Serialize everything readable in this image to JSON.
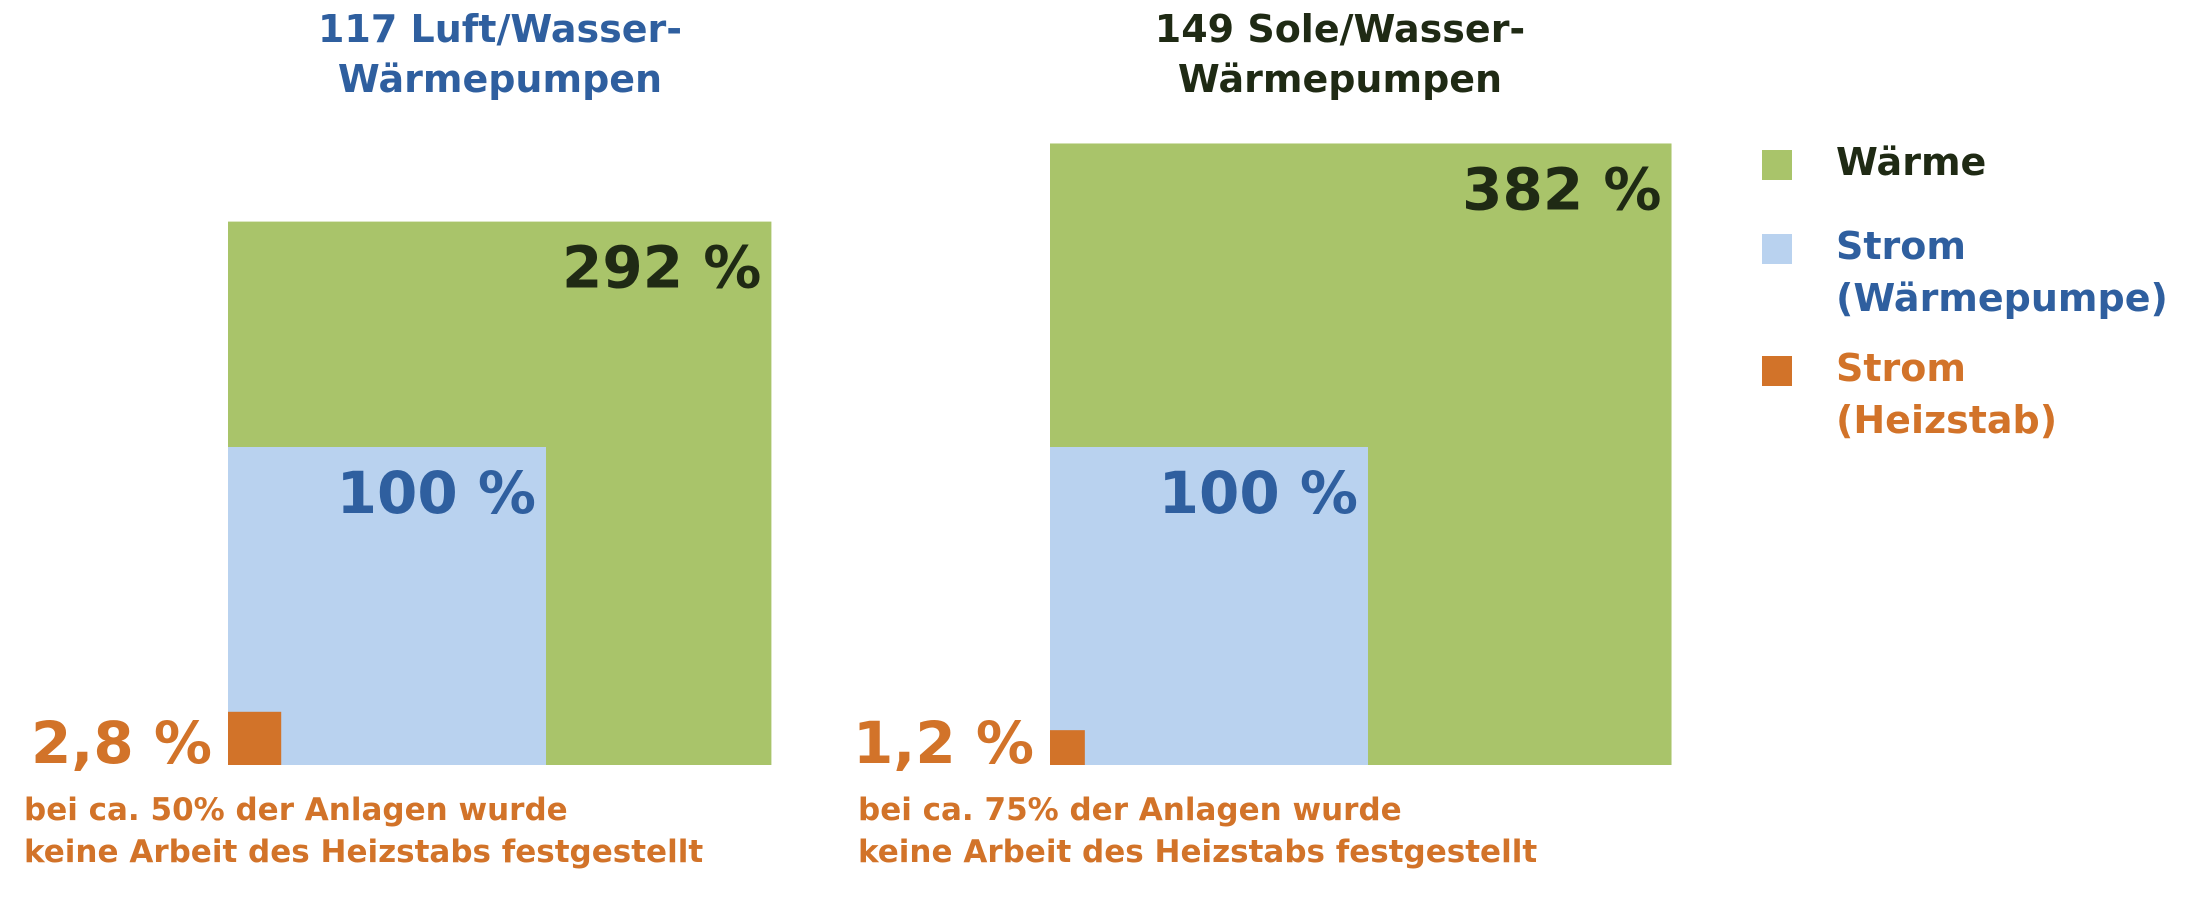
{
  "colors": {
    "heat": "#a9c46a",
    "power_hp": "#b9d2ef",
    "power_rod": "#d27329",
    "blue_text": "#2f5f9f",
    "dark_text": "#1f2a14",
    "orange_text": "#d27329"
  },
  "chart_data": [
    {
      "type": "area-proportional squares",
      "title_line1": "117 Luft/Wasser-",
      "title_line2": "Wärmepumpen",
      "series": [
        {
          "name": "Wärme",
          "value": 292,
          "label": "292 %"
        },
        {
          "name": "Strom (Wärmepumpe)",
          "value": 100,
          "label": "100 %"
        },
        {
          "name": "Strom (Heizstab)",
          "value": 2.8,
          "label": "2,8 %"
        }
      ],
      "note_line1": "bei ca. 50% der Anlagen wurde",
      "note_line2": "keine Arbeit des Heizstabs festgestellt"
    },
    {
      "type": "area-proportional squares",
      "title_line1": "149 Sole/Wasser-",
      "title_line2": "Wärmepumpen",
      "series": [
        {
          "name": "Wärme",
          "value": 382,
          "label": "382 %"
        },
        {
          "name": "Strom (Wärmepumpe)",
          "value": 100,
          "label": "100 %"
        },
        {
          "name": "Strom (Heizstab)",
          "value": 1.2,
          "label": "1,2 %"
        }
      ],
      "note_line1": "bei ca. 75% der Anlagen wurde",
      "note_line2": "keine Arbeit des Heizstabs festgestellt"
    }
  ],
  "legend": [
    {
      "line1": "Wärme",
      "line2": "",
      "color_key": "heat",
      "text_key": "dark_text"
    },
    {
      "line1": "Strom",
      "line2": "(Wärmepumpe)",
      "color_key": "power_hp",
      "text_key": "blue_text"
    },
    {
      "line1": "Strom",
      "line2": "(Heizstab)",
      "color_key": "power_rod",
      "text_key": "orange_text"
    }
  ]
}
